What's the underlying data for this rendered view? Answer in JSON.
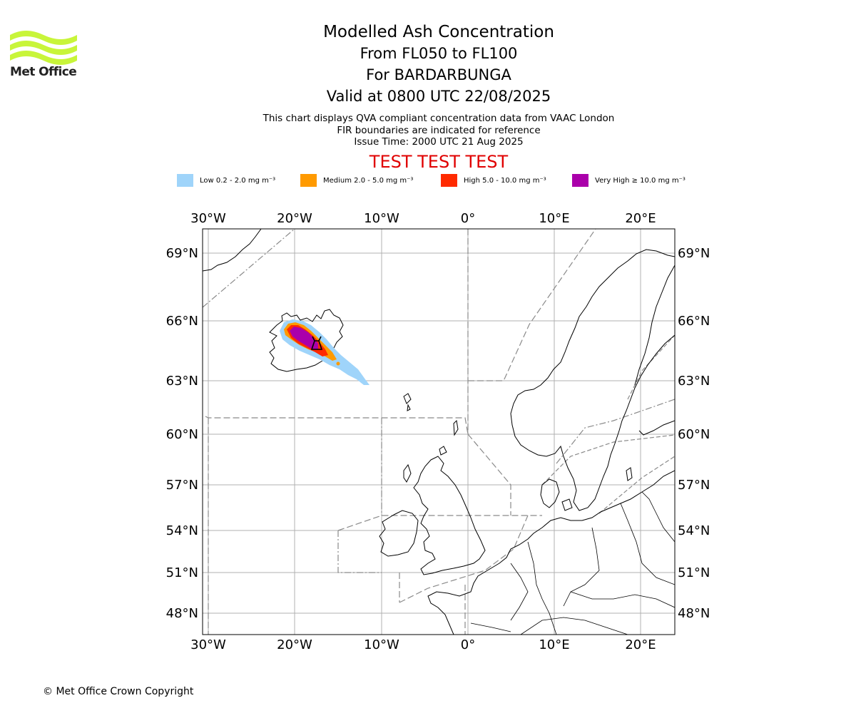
{
  "logo": {
    "name": "Met Office"
  },
  "titles": {
    "main": "Modelled Ash Concentration",
    "levels": "From FL050 to FL100",
    "volcano": "For BARDARBUNGA",
    "valid": "Valid at 0800 UTC 22/08/2025"
  },
  "notes": {
    "line1": "This chart displays QVA compliant concentration data from VAAC London",
    "line2": "FIR boundaries are indicated for reference",
    "line3": "Issue Time: 2000 UTC 21 Aug 2025"
  },
  "test_banner": "TEST TEST TEST",
  "legend": [
    {
      "label": "Low 0.2 - 2.0 mg m⁻³",
      "color": "#9fd4fa"
    },
    {
      "label": "Medium 2.0 - 5.0 mg m⁻³",
      "color": "#ff9a00"
    },
    {
      "label": "High 5.0 - 10.0 mg m⁻³",
      "color": "#ff2a00"
    },
    {
      "label": "Very High ≥ 10.0 mg m⁻³",
      "color": "#aa00aa"
    }
  ],
  "axes": {
    "lon_labels": [
      "30°W",
      "20°W",
      "10°W",
      "0°",
      "10°E",
      "20°E"
    ],
    "lat_labels": [
      "69°N",
      "66°N",
      "63°N",
      "60°N",
      "57°N",
      "54°N",
      "51°N",
      "48°N"
    ]
  },
  "copyright": "© Met Office Crown Copyright"
}
